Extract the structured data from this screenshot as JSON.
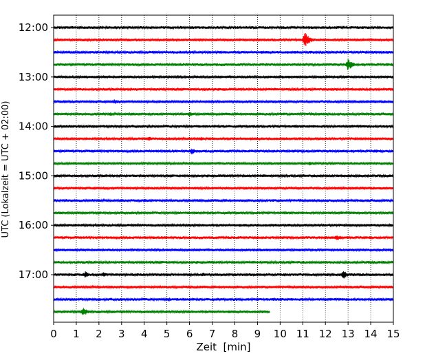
{
  "chart_data": {
    "type": "line",
    "title": "",
    "xlabel": "Zeit  [min]",
    "ylabel": "UTC (Lokalzeit = UTC + 02:00)",
    "xlim": [
      0,
      15
    ],
    "x_ticks": [
      "0",
      "1",
      "2",
      "3",
      "4",
      "5",
      "6",
      "7",
      "8",
      "9",
      "10",
      "11",
      "12",
      "13",
      "14",
      "15"
    ],
    "y_tick_labels": [
      "12:00",
      "13:00",
      "14:00",
      "15:00",
      "16:00",
      "17:00"
    ],
    "grid": "vertical dotted",
    "colors": [
      "#000000",
      "#ff0000",
      "#0000ff",
      "#008000"
    ],
    "rows": [
      {
        "label": "12:00",
        "color": "#000000",
        "events": []
      },
      {
        "label": "12:15",
        "color": "#ff0000",
        "events": [
          {
            "t": 11.1,
            "amp": 11
          }
        ]
      },
      {
        "label": "12:30",
        "color": "#0000ff",
        "events": []
      },
      {
        "label": "12:45",
        "color": "#008000",
        "events": [
          {
            "t": 13.0,
            "amp": 9
          }
        ]
      },
      {
        "label": "13:00",
        "color": "#000000",
        "events": []
      },
      {
        "label": "13:15",
        "color": "#ff0000",
        "events": []
      },
      {
        "label": "13:30",
        "color": "#0000ff",
        "events": [
          {
            "t": 2.7,
            "amp": 4
          }
        ]
      },
      {
        "label": "13:45",
        "color": "#008000",
        "events": [
          {
            "t": 2.5,
            "amp": 3
          },
          {
            "t": 6.0,
            "amp": 4
          }
        ]
      },
      {
        "label": "14:00",
        "color": "#000000",
        "events": []
      },
      {
        "label": "14:15",
        "color": "#ff0000",
        "events": [
          {
            "t": 4.2,
            "amp": 4
          },
          {
            "t": 6.5,
            "amp": 3
          }
        ]
      },
      {
        "label": "14:30",
        "color": "#0000ff",
        "events": [
          {
            "t": 6.1,
            "amp": 5
          },
          {
            "t": 14.2,
            "amp": 3
          },
          {
            "t": 9.6,
            "amp": 2
          }
        ]
      },
      {
        "label": "14:45",
        "color": "#008000",
        "events": [
          {
            "t": 11.3,
            "amp": 3
          },
          {
            "t": 4.0,
            "amp": 2
          }
        ]
      },
      {
        "label": "15:00",
        "color": "#000000",
        "events": [
          {
            "t": 13.4,
            "amp": 2
          }
        ]
      },
      {
        "label": "15:15",
        "color": "#ff0000",
        "events": [
          {
            "t": 6.2,
            "amp": 3
          },
          {
            "t": 14.3,
            "amp": 2
          }
        ]
      },
      {
        "label": "15:30",
        "color": "#0000ff",
        "events": [
          {
            "t": 4.0,
            "amp": 3
          }
        ]
      },
      {
        "label": "15:45",
        "color": "#008000",
        "events": [
          {
            "t": 11.5,
            "amp": 2
          }
        ]
      },
      {
        "label": "16:00",
        "color": "#000000",
        "events": []
      },
      {
        "label": "16:15",
        "color": "#ff0000",
        "events": [
          {
            "t": 12.5,
            "amp": 5
          }
        ]
      },
      {
        "label": "16:30",
        "color": "#0000ff",
        "events": [
          {
            "t": 5.3,
            "amp": 2
          },
          {
            "t": 10.1,
            "amp": 2
          }
        ]
      },
      {
        "label": "16:45",
        "color": "#008000",
        "events": [
          {
            "t": 4.6,
            "amp": 2
          },
          {
            "t": 12.6,
            "amp": 2
          }
        ]
      },
      {
        "label": "17:00",
        "color": "#000000",
        "events": [
          {
            "t": 1.4,
            "amp": 5
          },
          {
            "t": 2.2,
            "amp": 4
          },
          {
            "t": 6.6,
            "amp": 3
          },
          {
            "t": 10.2,
            "amp": 3
          },
          {
            "t": 12.8,
            "amp": 6
          }
        ]
      },
      {
        "label": "17:15",
        "color": "#ff0000",
        "events": [
          {
            "t": 8.8,
            "amp": 2
          }
        ]
      },
      {
        "label": "17:30",
        "color": "#0000ff",
        "events": [
          {
            "t": 5.1,
            "amp": 3
          },
          {
            "t": 7.0,
            "amp": 2
          }
        ]
      },
      {
        "label": "17:45",
        "color": "#008000",
        "end": 9.55,
        "events": [
          {
            "t": 1.3,
            "amp": 7
          }
        ]
      }
    ]
  }
}
